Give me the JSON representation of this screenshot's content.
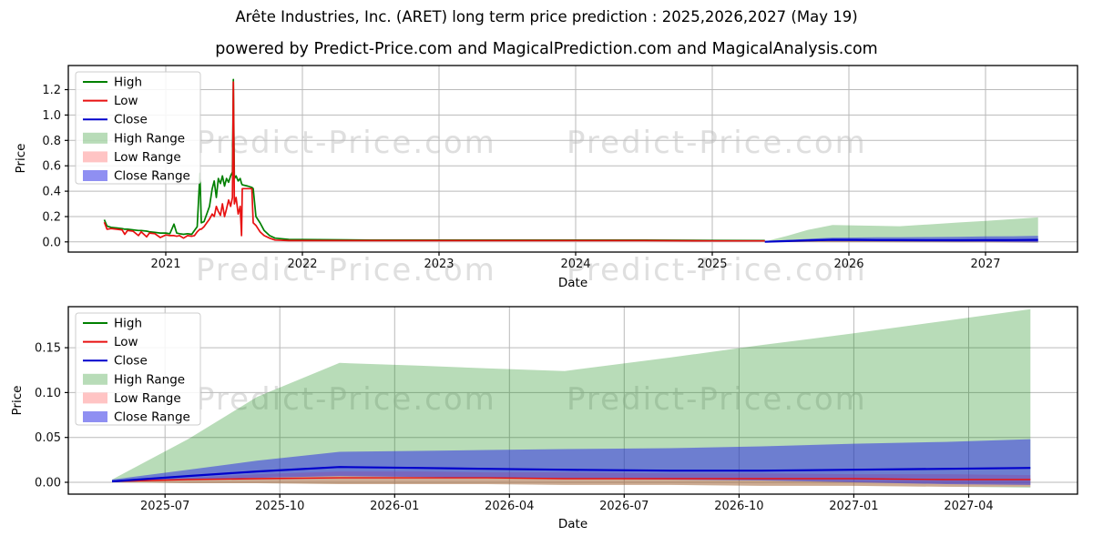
{
  "title": "Arête Industries, Inc. (ARET) long term price prediction : 2025,2026,2027 (May 19)",
  "subtitle": "powered by Predict-Price.com and MagicalPrediction.com and MagicalAnalysis.com",
  "watermark": {
    "text": "Predict-Price.com"
  },
  "colors": {
    "high": "#008000",
    "low": "#e81010",
    "close": "#0000cc",
    "low_fill": "#ff3c3c",
    "close_fill": "#2828e6",
    "high_fill": "#008000"
  },
  "legend": [
    {
      "label": "High",
      "type": "line",
      "color_key": "high"
    },
    {
      "label": "Low",
      "type": "line",
      "color_key": "low"
    },
    {
      "label": "Close",
      "type": "line",
      "color_key": "close"
    },
    {
      "label": "High Range",
      "type": "patch",
      "color_key": "high_fill",
      "opacity": 0.28
    },
    {
      "label": "Low Range",
      "type": "patch",
      "color_key": "low_fill",
      "opacity": 0.3
    },
    {
      "label": "Close Range",
      "type": "patch",
      "color_key": "close_fill",
      "opacity": 0.52
    }
  ],
  "prediction_series": {
    "t": [
      2025.3846,
      2025.55,
      2025.7,
      2025.88,
      2026.05,
      2026.2,
      2026.37,
      2026.6,
      2026.8,
      2027.0,
      2027.2,
      2027.3846
    ],
    "high_upper": [
      0.003,
      0.048,
      0.095,
      0.133,
      0.13,
      0.127,
      0.124,
      0.139,
      0.153,
      0.166,
      0.18,
      0.193
    ],
    "high_lower": [
      0.0,
      -0.001,
      -0.001,
      -0.002,
      -0.002,
      -0.002,
      -0.003,
      -0.003,
      -0.004,
      -0.004,
      -0.005,
      -0.006
    ],
    "close_upper": [
      0.003,
      0.014,
      0.024,
      0.034,
      0.035,
      0.036,
      0.037,
      0.038,
      0.04,
      0.043,
      0.045,
      0.048
    ],
    "close": [
      0.001,
      0.007,
      0.012,
      0.017,
      0.016,
      0.015,
      0.014,
      0.013,
      0.013,
      0.014,
      0.015,
      0.016
    ],
    "close_lower": [
      0.0,
      0.003,
      0.005,
      0.007,
      0.006,
      0.005,
      0.004,
      0.003,
      0.002,
      0.0,
      -0.002,
      -0.003
    ],
    "low_upper": [
      0.001,
      0.005,
      0.009,
      0.012,
      0.012,
      0.011,
      0.011,
      0.01,
      0.01,
      0.009,
      0.009,
      0.008
    ],
    "low": [
      0.001,
      0.003,
      0.004,
      0.005,
      0.005,
      0.005,
      0.004,
      0.004,
      0.004,
      0.004,
      0.003,
      0.003
    ],
    "low_lower": [
      0.0,
      -0.001,
      -0.001,
      -0.002,
      -0.002,
      -0.002,
      -0.003,
      -0.003,
      -0.004,
      -0.004,
      -0.005,
      -0.005
    ]
  },
  "chart_data": [
    {
      "type": "line",
      "xlabel": "Date",
      "ylabel": "Price",
      "grid": true,
      "legend_position": "upper left",
      "xlim": [
        2020.2867,
        2027.6733
      ],
      "ylim": [
        -0.08,
        1.39
      ],
      "xticks": [
        {
          "v": 2021,
          "label": "2021"
        },
        {
          "v": 2022,
          "label": "2022"
        },
        {
          "v": 2023,
          "label": "2023"
        },
        {
          "v": 2024,
          "label": "2024"
        },
        {
          "v": 2025,
          "label": "2025"
        },
        {
          "v": 2026,
          "label": "2026"
        },
        {
          "v": 2027,
          "label": "2027"
        }
      ],
      "yticks": [
        {
          "v": 0.0,
          "label": "0.0"
        },
        {
          "v": 0.2,
          "label": "0.2"
        },
        {
          "v": 0.4,
          "label": "0.4"
        },
        {
          "v": 0.6,
          "label": "0.6"
        },
        {
          "v": 0.8,
          "label": "0.8"
        },
        {
          "v": 1.0,
          "label": "1.0"
        },
        {
          "v": 1.2,
          "label": "1.2"
        }
      ],
      "series": {
        "history": {
          "t": [
            2020.55,
            2020.57,
            2020.6,
            2020.64,
            2020.68,
            2020.7,
            2020.72,
            2020.76,
            2020.8,
            2020.82,
            2020.86,
            2020.88,
            2020.92,
            2020.96,
            2021.0,
            2021.03,
            2021.06,
            2021.08,
            2021.1,
            2021.13,
            2021.16,
            2021.19,
            2021.21,
            2021.23,
            2021.25,
            2021.26,
            2021.28,
            2021.3,
            2021.32,
            2021.34,
            2021.355,
            2021.37,
            2021.385,
            2021.4,
            2021.415,
            2021.43,
            2021.445,
            2021.46,
            2021.475,
            2021.488,
            2021.495,
            2021.502,
            2021.515,
            2021.53,
            2021.545,
            2021.555,
            2021.56,
            2021.6,
            2021.63,
            2021.64,
            2021.66,
            2021.69,
            2021.72,
            2021.76,
            2021.8,
            2021.9,
            2022.5,
            2023.0,
            2023.5,
            2024.0,
            2024.5,
            2025.0,
            2025.3846
          ],
          "high": [
            0.175,
            0.125,
            0.115,
            0.11,
            0.105,
            0.1,
            0.1,
            0.095,
            0.09,
            0.09,
            0.085,
            0.08,
            0.075,
            0.07,
            0.07,
            0.065,
            0.14,
            0.07,
            0.065,
            0.06,
            0.065,
            0.06,
            0.09,
            0.12,
            0.54,
            0.15,
            0.16,
            0.22,
            0.28,
            0.42,
            0.48,
            0.35,
            0.5,
            0.46,
            0.52,
            0.44,
            0.5,
            0.47,
            0.52,
            0.55,
            1.28,
            0.5,
            0.52,
            0.48,
            0.5,
            0.46,
            0.45,
            0.44,
            0.43,
            0.42,
            0.2,
            0.15,
            0.09,
            0.05,
            0.03,
            0.02,
            0.015,
            0.015,
            0.015,
            0.015,
            0.015,
            0.012,
            0.01
          ],
          "low": [
            0.155,
            0.1,
            0.105,
            0.1,
            0.095,
            0.06,
            0.09,
            0.085,
            0.05,
            0.08,
            0.04,
            0.07,
            0.065,
            0.035,
            0.055,
            0.05,
            0.05,
            0.045,
            0.05,
            0.03,
            0.05,
            0.045,
            0.05,
            0.08,
            0.1,
            0.1,
            0.12,
            0.15,
            0.18,
            0.22,
            0.2,
            0.28,
            0.24,
            0.21,
            0.3,
            0.2,
            0.26,
            0.33,
            0.28,
            0.35,
            1.26,
            0.3,
            0.35,
            0.22,
            0.28,
            0.05,
            0.42,
            0.42,
            0.42,
            0.15,
            0.13,
            0.08,
            0.05,
            0.03,
            0.015,
            0.01,
            0.01,
            0.01,
            0.01,
            0.01,
            0.01,
            0.008,
            0.008
          ]
        },
        "prediction": "prediction_series"
      }
    },
    {
      "type": "line",
      "xlabel": "Date",
      "ylabel": "Price",
      "grid": true,
      "legend_position": "upper left",
      "xlim": [
        2025.2894,
        2027.4871
      ],
      "ylim": [
        -0.0132,
        0.1957
      ],
      "xticks": [
        {
          "v": 2025.5,
          "label": "2025-07"
        },
        {
          "v": 2025.75,
          "label": "2025-10"
        },
        {
          "v": 2026.0,
          "label": "2026-01"
        },
        {
          "v": 2026.25,
          "label": "2026-04"
        },
        {
          "v": 2026.5,
          "label": "2026-07"
        },
        {
          "v": 2026.75,
          "label": "2026-10"
        },
        {
          "v": 2027.0,
          "label": "2027-01"
        },
        {
          "v": 2027.25,
          "label": "2027-04"
        }
      ],
      "yticks": [
        {
          "v": 0.0,
          "label": "0.00"
        },
        {
          "v": 0.05,
          "label": "0.05"
        },
        {
          "v": 0.1,
          "label": "0.10"
        },
        {
          "v": 0.15,
          "label": "0.15"
        }
      ],
      "series": {
        "prediction": "prediction_series"
      }
    }
  ]
}
